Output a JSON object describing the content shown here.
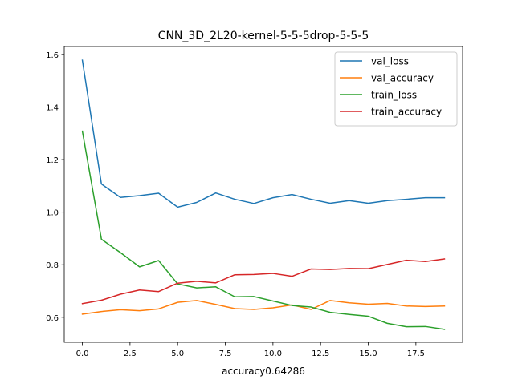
{
  "chart_data": {
    "type": "line",
    "title": "CNN_3D_2L20-kernel-5-5-5drop-5-5-5",
    "xlabel": "accuracy0.64286",
    "ylabel": "",
    "xlim": [
      -0.95,
      19.95
    ],
    "ylim": [
      0.505,
      1.63
    ],
    "x_ticks": [
      0,
      2.5,
      5,
      7.5,
      10,
      12.5,
      15,
      17.5
    ],
    "x_tick_labels": [
      "0.0",
      "2.5",
      "5.0",
      "7.5",
      "10.0",
      "12.5",
      "15.0",
      "17.5"
    ],
    "y_ticks": [
      0.6,
      0.8,
      1.0,
      1.2,
      1.4,
      1.6
    ],
    "y_tick_labels": [
      "0.6",
      "0.8",
      "1.0",
      "1.2",
      "1.4",
      "1.6"
    ],
    "grid": false,
    "legend_position": "top-right",
    "x": [
      0,
      1,
      2,
      3,
      4,
      5,
      6,
      7,
      8,
      9,
      10,
      11,
      12,
      13,
      14,
      15,
      16,
      17,
      18,
      19
    ],
    "series": [
      {
        "name": "val_loss",
        "color": "#1f77b4",
        "values": [
          1.578,
          1.107,
          1.056,
          1.063,
          1.072,
          1.019,
          1.037,
          1.073,
          1.049,
          1.033,
          1.055,
          1.067,
          1.049,
          1.034,
          1.044,
          1.034,
          1.044,
          1.049,
          1.055,
          1.055
        ]
      },
      {
        "name": "val_accuracy",
        "color": "#ff7f0e",
        "values": [
          0.612,
          0.622,
          0.629,
          0.625,
          0.632,
          0.657,
          0.664,
          0.649,
          0.633,
          0.63,
          0.636,
          0.647,
          0.63,
          0.664,
          0.655,
          0.65,
          0.653,
          0.643,
          0.641,
          0.643
        ]
      },
      {
        "name": "train_loss",
        "color": "#2ca02c",
        "values": [
          1.308,
          0.897,
          0.846,
          0.792,
          0.816,
          0.727,
          0.712,
          0.716,
          0.678,
          0.679,
          0.662,
          0.645,
          0.639,
          0.619,
          0.611,
          0.604,
          0.577,
          0.564,
          0.565,
          0.554
        ]
      },
      {
        "name": "train_accuracy",
        "color": "#d62728",
        "values": [
          0.652,
          0.665,
          0.688,
          0.704,
          0.698,
          0.73,
          0.737,
          0.731,
          0.762,
          0.763,
          0.767,
          0.756,
          0.784,
          0.782,
          0.786,
          0.785,
          0.801,
          0.817,
          0.812,
          0.822
        ]
      }
    ]
  }
}
